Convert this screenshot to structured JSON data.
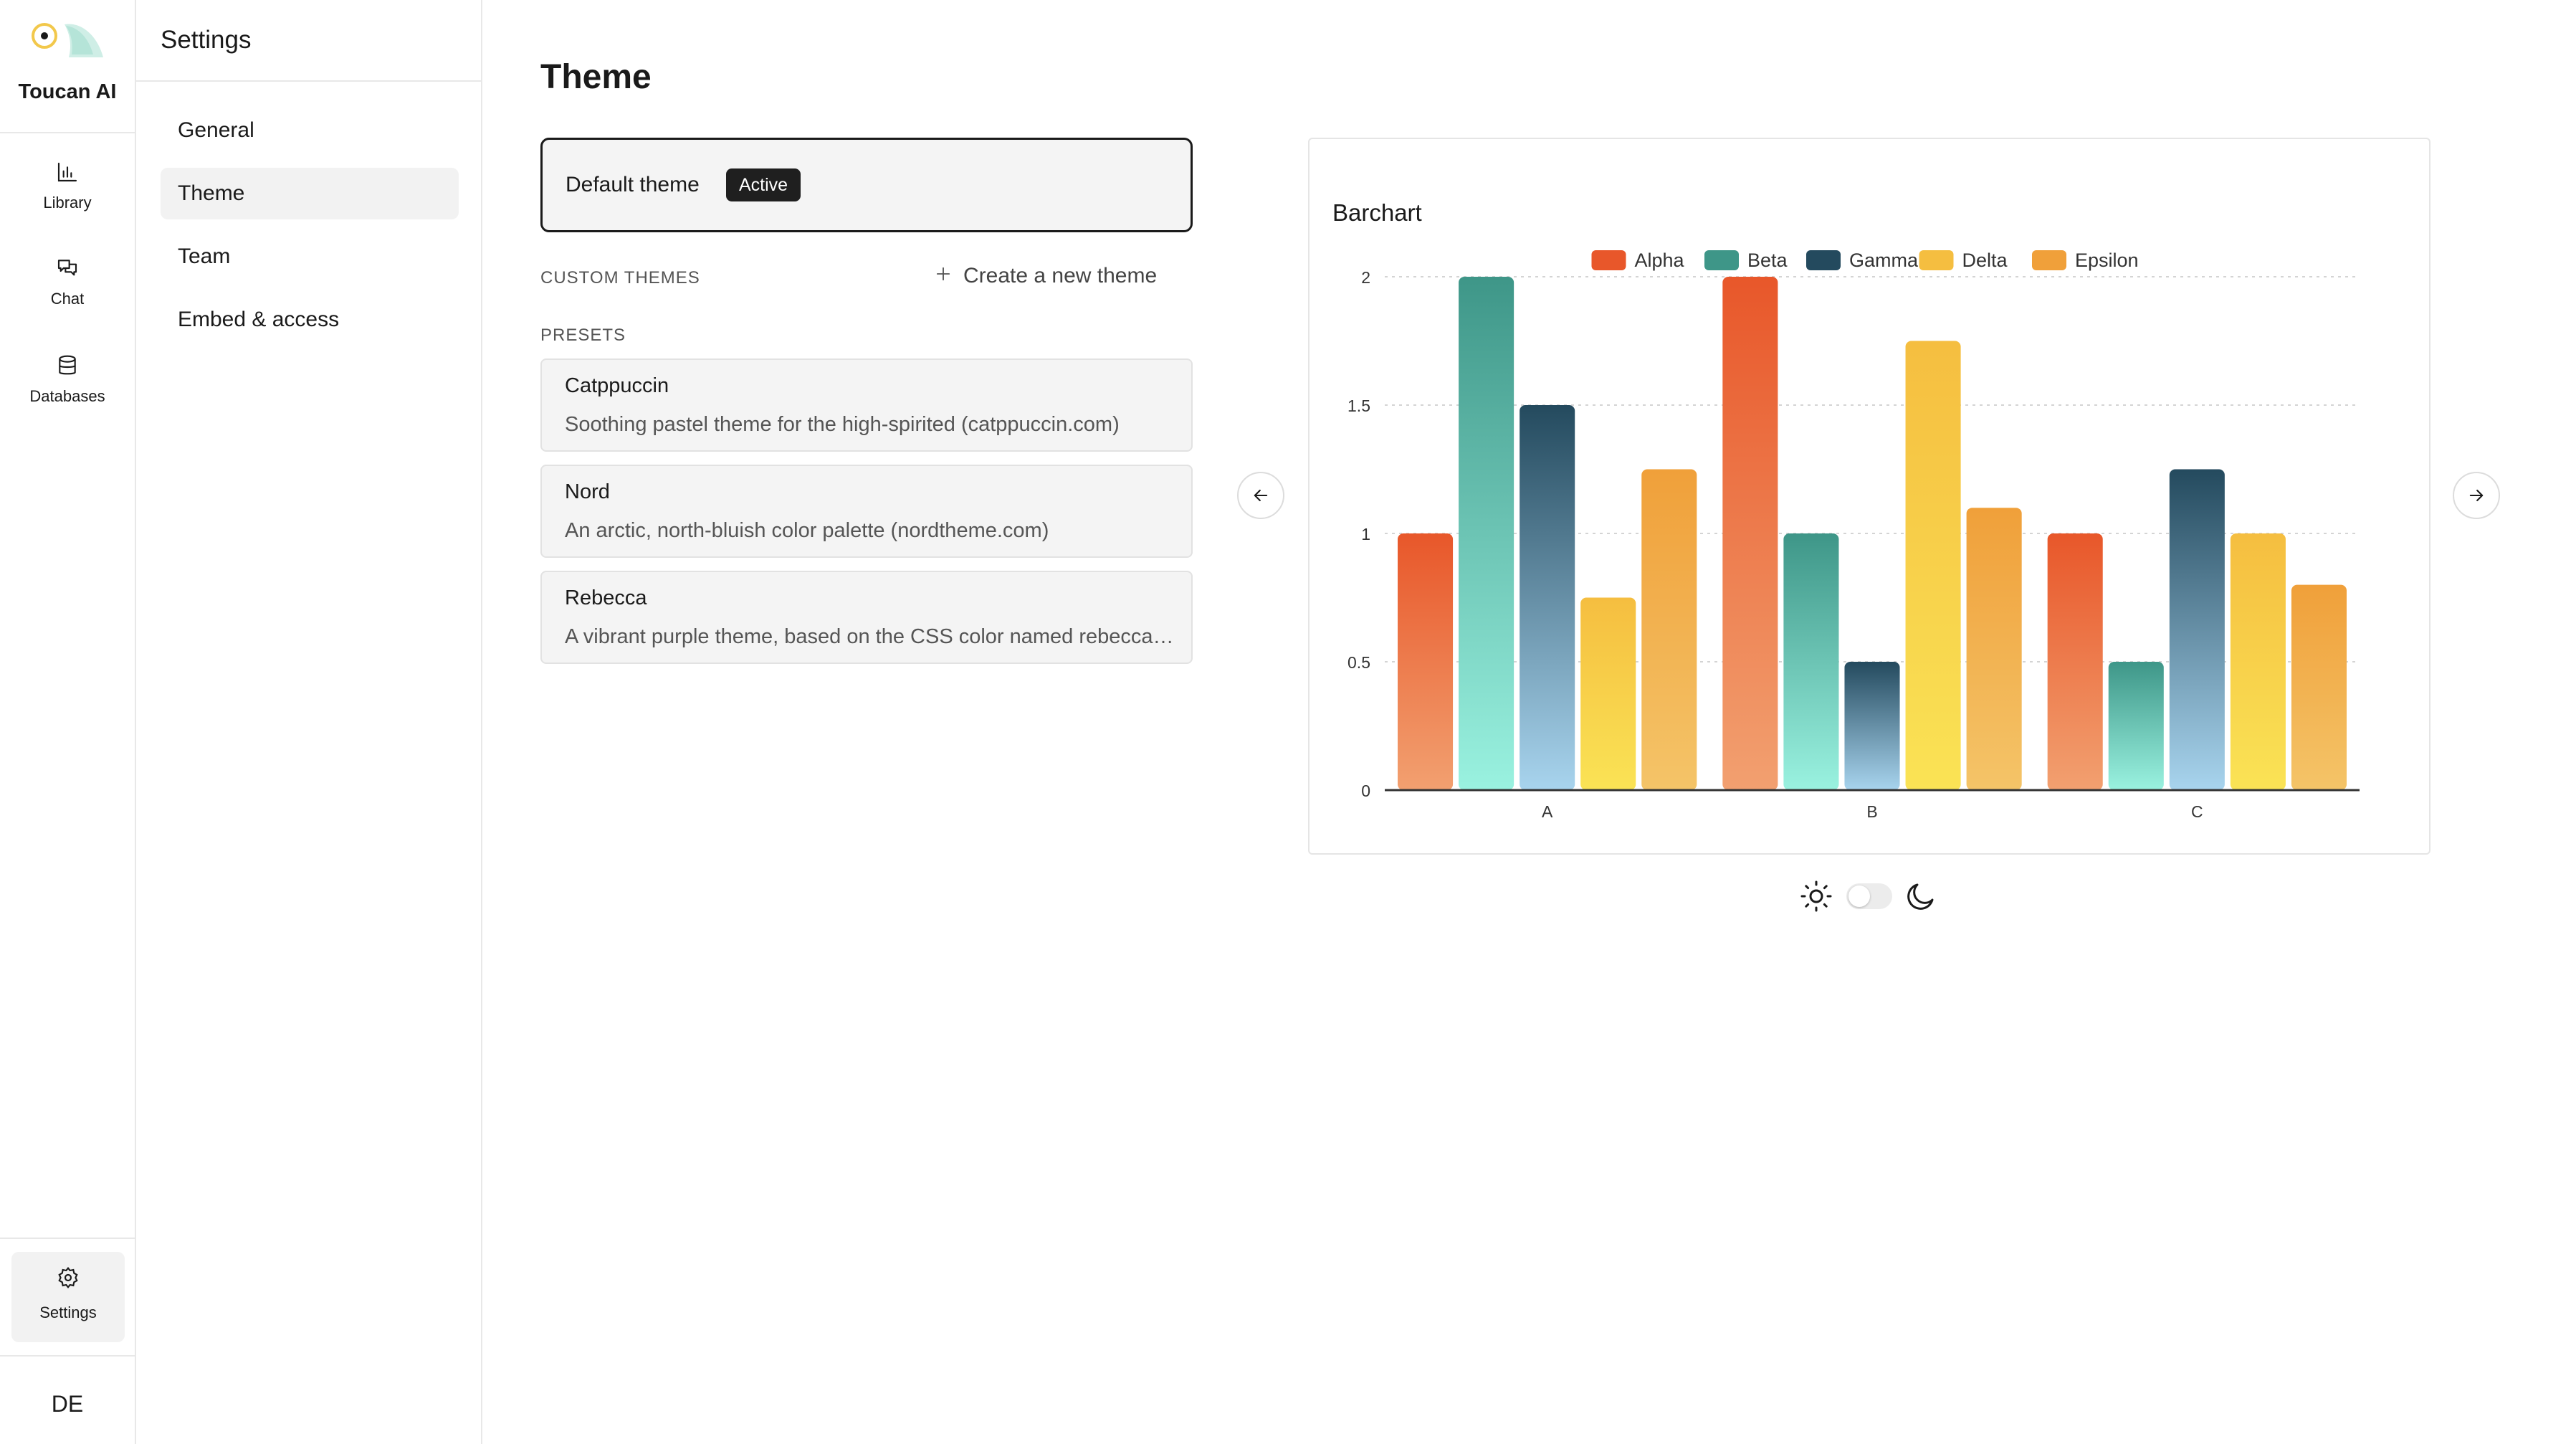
{
  "app": {
    "brand_name": "Toucan AI"
  },
  "rail": {
    "items": [
      {
        "label": "Library",
        "icon": "bar-chart-icon"
      },
      {
        "label": "Chat",
        "icon": "chat-bubbles-icon"
      },
      {
        "label": "Databases",
        "icon": "database-icon"
      }
    ],
    "settings": {
      "label": "Settings",
      "icon": "gear-icon"
    },
    "avatar": "DE"
  },
  "settings_panel": {
    "title": "Settings",
    "items": [
      {
        "label": "General",
        "active": false
      },
      {
        "label": "Theme",
        "active": true
      },
      {
        "label": "Team",
        "active": false
      },
      {
        "label": "Embed & access",
        "active": false
      }
    ]
  },
  "main": {
    "title": "Theme",
    "default_theme": {
      "name": "Default theme",
      "badge": "Active"
    },
    "custom_themes_label": "CUSTOM THEMES",
    "create_theme_label": "Create a new theme",
    "presets_label": "PRESETS",
    "presets": [
      {
        "name": "Catppuccin",
        "description": "Soothing pastel theme for the high-spirited (catppuccin.com)"
      },
      {
        "name": "Nord",
        "description": "An arctic, north-bluish color palette (nordtheme.com)"
      },
      {
        "name": "Rebecca",
        "description": "A vibrant purple theme, based on the CSS color named rebeccapurple"
      }
    ]
  },
  "colors": {
    "accent_dark": "#1f1f1f",
    "logo_yellow": "#f2c84b",
    "logo_teal": "#8ed6c4"
  },
  "chart_data": {
    "type": "bar",
    "title": "Barchart",
    "categories": [
      "A",
      "B",
      "C"
    ],
    "series": [
      {
        "name": "Alpha",
        "values": [
          1,
          2,
          1
        ],
        "color_top": "#e8572a",
        "color_bottom": "#f2a070"
      },
      {
        "name": "Beta",
        "values": [
          2,
          1,
          0.5
        ],
        "color_top": "#3e9688",
        "color_bottom": "#9af2e0"
      },
      {
        "name": "Gamma",
        "values": [
          1.5,
          0.5,
          1.25
        ],
        "color_top": "#244a5e",
        "color_bottom": "#a8d4ee"
      },
      {
        "name": "Delta",
        "values": [
          0.75,
          1.75,
          1
        ],
        "color_top": "#f5be40",
        "color_bottom": "#fae355"
      },
      {
        "name": "Epsilon",
        "values": [
          1.25,
          1.1,
          0.8
        ],
        "color_top": "#f0a03a",
        "color_bottom": "#f4c468"
      }
    ],
    "y_ticks": [
      "0",
      "0.5",
      "1",
      "1.5",
      "2"
    ],
    "ylim": [
      0,
      2
    ],
    "grid": true,
    "legend_position": "top-center",
    "xlabel": "",
    "ylabel": ""
  }
}
